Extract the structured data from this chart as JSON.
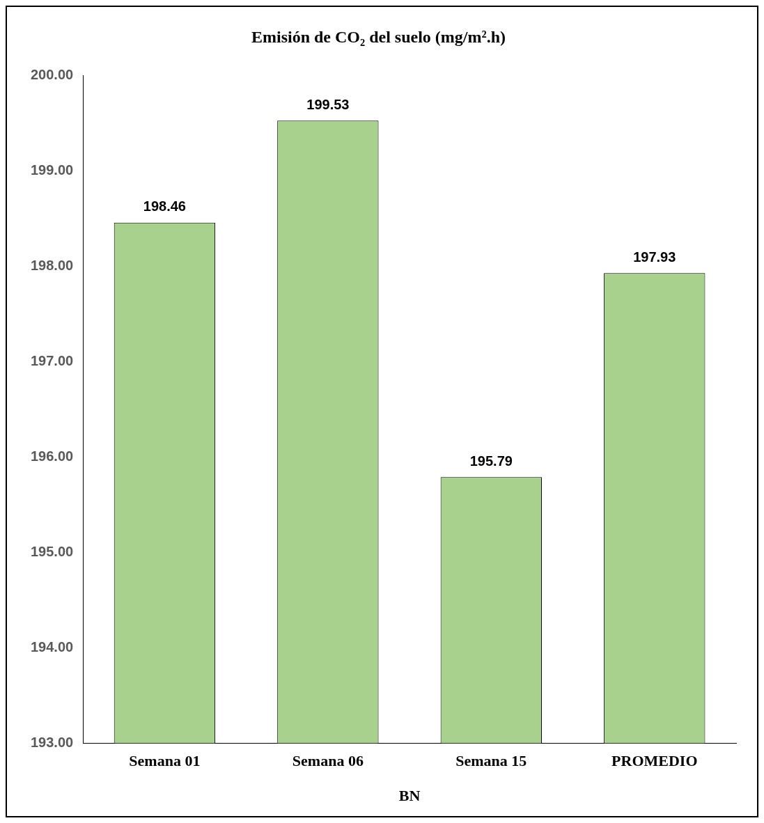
{
  "chart_data": {
    "type": "bar",
    "title": "Emisión de CO₂ del suelo (mg/m².h)",
    "xlabel": "BN",
    "categories": [
      "Semana 01",
      "Semana 06",
      "Semana 15",
      "PROMEDIO"
    ],
    "values": [
      198.46,
      199.53,
      195.79,
      197.93
    ],
    "color": "#a9d18e",
    "ylim": [
      193,
      200
    ],
    "yticks": [
      {
        "value": 193,
        "label": "193.00"
      },
      {
        "value": 194,
        "label": "194.00"
      },
      {
        "value": 195,
        "label": "195.00"
      },
      {
        "value": 196,
        "label": "196.00"
      },
      {
        "value": 197,
        "label": "197.00"
      },
      {
        "value": 198,
        "label": "198.00"
      },
      {
        "value": 199,
        "label": "199.00"
      },
      {
        "value": 200,
        "label": "200.00"
      }
    ],
    "grid": false,
    "legend": false,
    "data_labels": true
  }
}
